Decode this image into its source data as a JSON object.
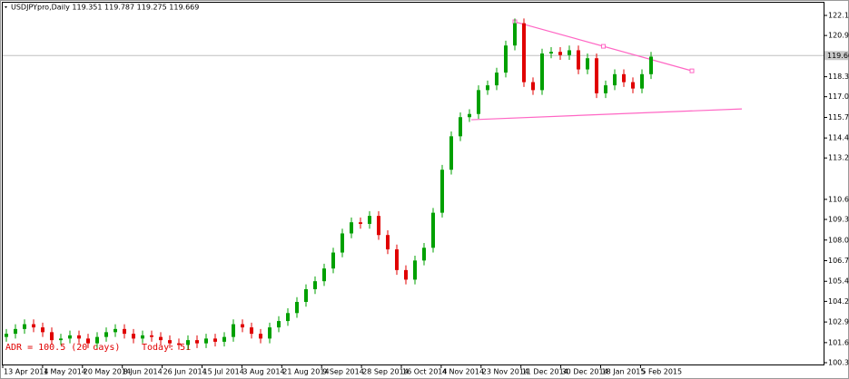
{
  "chart_data": {
    "type": "candlestick",
    "title": "USDJPYpro,Daily  119.351 119.787 119.275 119.669",
    "annotations": [
      "ADR = 100.5   (20 days)",
      "Today: 51"
    ],
    "up_color": "#00a000",
    "down_color": "#e00000",
    "xticks": [
      "13 Apr 2014",
      "1 May 2014",
      "20 May 2014",
      "8 Jun 2014",
      "26 Jun 2014",
      "15 Jul 2014",
      "3 Aug 2014",
      "21 Aug 2014",
      "9 Sep 2014",
      "28 Sep 2014",
      "16 Oct 2014",
      "4 Nov 2014",
      "23 Nov 2014",
      "11 Dec 2014",
      "30 Dec 2014",
      "18 Jan 2015",
      "5 Feb 2015"
    ],
    "ylim": [
      100.385,
      122.19
    ],
    "yticks": [
      {
        "value": 122.19,
        "label": "122.190"
      },
      {
        "value": 120.93,
        "label": "120.930"
      },
      {
        "value": 118.34,
        "label": "118.340"
      },
      117.085,
      115.785,
      114.495,
      {
        "value": 113.24,
        "label": "113.240"
      },
      {
        "value": 110.64,
        "label": "110.640"
      },
      {
        "value": 109.38,
        "label": "109.380"
      },
      108.085,
      {
        "value": 106.79,
        "label": "106.790"
      },
      105.495,
      104.235,
      {
        "value": 102.94,
        "label": "102.940"
      },
      101.645,
      100.385
    ],
    "current_price": 119.669,
    "trendlines": [
      {
        "color": "#ff66c4",
        "values": [
          121.79,
          118.71
        ]
      },
      {
        "color": "#ff66c4",
        "values": [
          115.64,
          116.32
        ]
      }
    ],
    "open": [
      102.0,
      102.2,
      102.5,
      102.8,
      102.6,
      102.3,
      101.8,
      101.9,
      102.1,
      101.9,
      101.6,
      102.0,
      102.3,
      102.5,
      102.2,
      101.9,
      102.1,
      102.0,
      101.8,
      101.6,
      101.5,
      101.8,
      101.6,
      101.9,
      101.7,
      102.0,
      102.8,
      102.6,
      102.2,
      101.9,
      102.6,
      103.0,
      103.5,
      104.2,
      105.0,
      105.5,
      106.3,
      107.3,
      108.5,
      109.2,
      109.1,
      109.6,
      108.4,
      107.5,
      106.2,
      105.6,
      106.8,
      107.6,
      109.8,
      112.5,
      114.6,
      115.8,
      116.0,
      117.5,
      117.8,
      118.6,
      120.3,
      121.7,
      118.0,
      117.5,
      119.8,
      119.9,
      119.7,
      120.0,
      118.8,
      119.5,
      117.3,
      117.8,
      118.5,
      118.0,
      117.6,
      118.5
    ],
    "high": [
      102.5,
      102.8,
      103.1,
      103.1,
      102.9,
      102.6,
      102.2,
      102.4,
      102.4,
      102.2,
      102.3,
      102.6,
      102.8,
      102.8,
      102.5,
      102.4,
      102.4,
      102.3,
      102.1,
      101.9,
      102.1,
      102.1,
      102.2,
      102.2,
      102.3,
      103.1,
      103.1,
      102.9,
      102.5,
      102.9,
      103.3,
      103.8,
      104.5,
      105.3,
      105.8,
      106.6,
      107.6,
      108.8,
      109.5,
      109.5,
      109.9,
      109.9,
      108.7,
      107.8,
      106.5,
      107.1,
      107.9,
      110.1,
      112.8,
      114.9,
      116.1,
      116.3,
      117.8,
      118.1,
      118.9,
      120.6,
      122.0,
      122.0,
      118.3,
      120.1,
      120.2,
      120.2,
      120.3,
      120.3,
      119.8,
      119.8,
      118.1,
      118.8,
      118.8,
      118.3,
      118.8,
      119.9
    ],
    "low": [
      101.7,
      101.9,
      102.2,
      102.3,
      102.0,
      101.5,
      101.5,
      101.6,
      101.6,
      101.3,
      101.3,
      101.7,
      102.0,
      101.9,
      101.6,
      101.6,
      101.7,
      101.5,
      101.3,
      101.2,
      101.2,
      101.3,
      101.3,
      101.4,
      101.4,
      101.7,
      102.3,
      101.9,
      101.6,
      101.6,
      102.3,
      102.7,
      103.2,
      103.9,
      104.7,
      105.2,
      106.0,
      107.0,
      108.2,
      108.8,
      108.8,
      108.1,
      107.2,
      105.9,
      105.3,
      105.3,
      106.5,
      107.3,
      109.5,
      112.2,
      114.3,
      115.5,
      115.7,
      117.2,
      117.5,
      118.3,
      120.0,
      117.7,
      117.2,
      117.2,
      119.5,
      119.4,
      119.4,
      118.5,
      118.5,
      117.0,
      117.0,
      117.5,
      117.7,
      117.3,
      117.3,
      118.2
    ],
    "close": [
      102.2,
      102.5,
      102.8,
      102.6,
      102.3,
      101.8,
      101.9,
      102.1,
      101.9,
      101.6,
      102.0,
      102.3,
      102.5,
      102.2,
      101.9,
      102.1,
      102.0,
      101.8,
      101.6,
      101.5,
      101.8,
      101.6,
      101.9,
      101.7,
      102.0,
      102.8,
      102.6,
      102.2,
      101.9,
      102.6,
      103.0,
      103.5,
      104.2,
      105.0,
      105.5,
      106.3,
      107.3,
      108.5,
      109.2,
      109.1,
      109.6,
      108.4,
      107.5,
      106.2,
      105.6,
      106.8,
      107.6,
      109.8,
      112.5,
      114.6,
      115.8,
      116.0,
      117.5,
      117.8,
      118.6,
      120.3,
      121.7,
      118.0,
      117.5,
      119.8,
      119.9,
      119.7,
      120.0,
      118.8,
      119.5,
      117.3,
      117.8,
      118.5,
      118.0,
      117.6,
      118.5,
      119.6
    ]
  }
}
